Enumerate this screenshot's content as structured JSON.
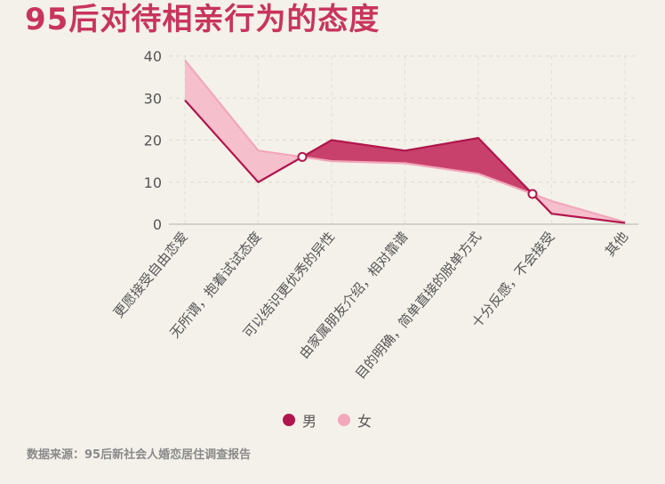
{
  "title": "95后对待相亲行为的态度",
  "source": "数据来源：95后新社会人婚恋居住调查报告",
  "colors": {
    "male": "#b0164b",
    "female": "#f2a7bb",
    "male_fill": "#c8416c",
    "female_fill": "#f5bfcc",
    "background": "#f4f1ea"
  },
  "chart_data": {
    "type": "area",
    "categories": [
      "更愿接受自由恋爱",
      "无所谓，抱着试试态度",
      "可以结识更优秀的异性",
      "由家属朋友介绍，相对靠谱",
      "目的明确，简单直接的脱单方式",
      "十分反感，不会接受",
      "其他"
    ],
    "series": [
      {
        "name": "男",
        "values": [
          29.5,
          10,
          20,
          17.5,
          20.5,
          2.5,
          0.3
        ]
      },
      {
        "name": "女",
        "values": [
          39,
          17.5,
          15,
          14.5,
          12,
          5.5,
          0.5
        ]
      }
    ],
    "ylim": [
      0,
      40
    ],
    "yticks": [
      0,
      10,
      20,
      30,
      40
    ],
    "grid": true,
    "legend_position": "bottom"
  }
}
